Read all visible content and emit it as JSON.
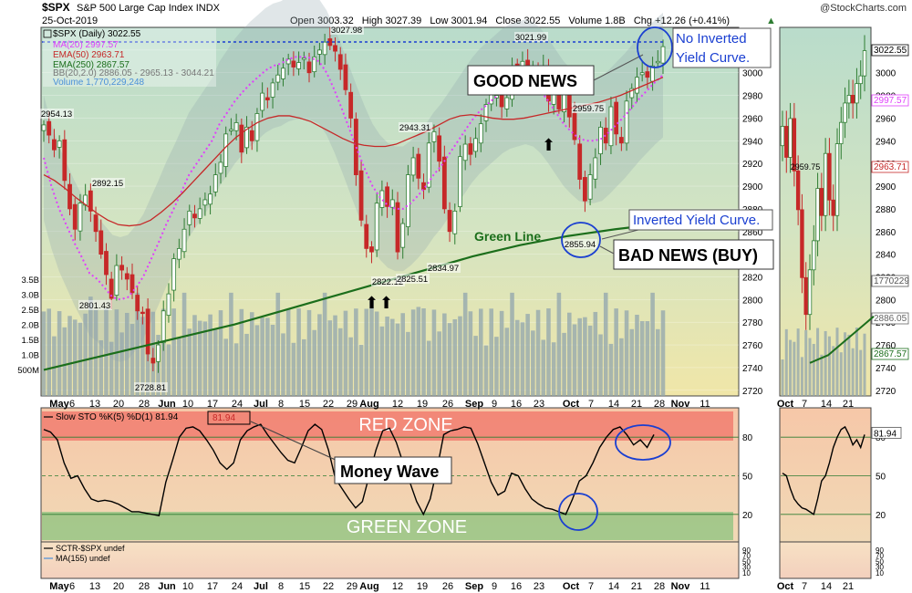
{
  "header": {
    "symbol": "$SPX",
    "name": "S&P 500 Large Cap Index",
    "exchange": "INDX",
    "date": "25-Oct-2019",
    "copyright": "@StockCharts.com",
    "open": "Open 3003.32",
    "high": "High 3027.39",
    "low": "Low 3001.94",
    "close": "Close 3022.55",
    "volume": "Volume 1.8B",
    "change": "Chg +12.26 (+0.41%)"
  },
  "legend": {
    "price": "$SPX (Daily) 3022.55",
    "ma20": "MA(20) 2997.57",
    "ema50": "EMA(50) 2963.71",
    "ema250": "EMA(250) 2867.57",
    "bb": "BB(20,2.0) 2886.05 - 2965.13 - 3044.21",
    "vol": "Volume 1,770,229,248"
  },
  "annotations": {
    "good_news": "GOOD NEWS",
    "bad_news": "BAD NEWS (BUY)",
    "no_inverted": [
      "No Inverted",
      "Yield Curve."
    ],
    "inverted": "Inverted Yield Curve.",
    "green_line": "Green Line",
    "money_wave": "Money Wave",
    "red_zone": "RED ZONE",
    "green_zone": "GREEN ZONE"
  },
  "indicator": {
    "sto_label": "Slow STO %K(5) %D(1) 81.94",
    "sto_value": "81.94",
    "sctr_label": "SCTR-$SPX undef",
    "sctr_ma": "MA(155) undef"
  },
  "colors": {
    "up": "#2e7d32",
    "down": "#c62828",
    "ma20": "#e040fb",
    "ema50": "#c62828",
    "ema250": "#1b6e1b",
    "volume": "#90a4ae",
    "red_zone": "#ef5350",
    "green_zone": "#66bb6a",
    "annotation_blue": "#1a3fd1"
  },
  "chart_data": [
    {
      "type": "candlestick",
      "title": "$SPX S&P 500 Large Cap Index INDX",
      "ylim": [
        2715,
        3040
      ],
      "y_ticks": [
        2720,
        2740,
        2760,
        2780,
        2800,
        2820,
        2840,
        2860,
        2880,
        2900,
        2920,
        2940,
        2960,
        2980,
        3000,
        3020
      ],
      "x_ticks": [
        "May",
        "6",
        "13",
        "20",
        "28",
        "Jun",
        "10",
        "17",
        "24",
        "Jul",
        "8",
        "15",
        "22",
        "29",
        "Aug",
        "12",
        "19",
        "26",
        "Sep",
        "9",
        "16",
        "23",
        "Oct",
        "7",
        "14",
        "21",
        "28",
        "Nov",
        "11"
      ],
      "price_labels": [
        "2954.13",
        "2892.15",
        "2801.43",
        "2728.81",
        "3027.98",
        "2943.31",
        "2822.12",
        "2825.51",
        "2834.97",
        "3021.99",
        "2959.75",
        "2855.94"
      ],
      "closes": [
        2954,
        2945,
        2932,
        2940,
        2905,
        2880,
        2862,
        2885,
        2892,
        2878,
        2860,
        2840,
        2822,
        2801,
        2830,
        2826,
        2818,
        2806,
        2790,
        2788,
        2752,
        2744,
        2760,
        2790,
        2805,
        2836,
        2845,
        2862,
        2878,
        2872,
        2880,
        2888,
        2893,
        2910,
        2921,
        2946,
        2950,
        2956,
        2930,
        2952,
        2940,
        2964,
        2982,
        2976,
        2991,
        2998,
        3004,
        3012,
        3005,
        3009,
        3013,
        3000,
        3014,
        3020,
        3027,
        3024,
        3019,
        3003,
        2985,
        2960,
        2910,
        2870,
        2845,
        2842,
        2885,
        2896,
        2882,
        2888,
        2842,
        2867,
        2910,
        2925,
        2907,
        2897,
        2938,
        2948,
        2922,
        2880,
        2860,
        2878,
        2926,
        2937,
        2928,
        2942,
        2955,
        2972,
        2981,
        2980,
        2970,
        2978,
        3004,
        3007,
        3010,
        2996,
        3005,
        2998,
        3006,
        2975,
        2984,
        2968,
        2988,
        2961,
        2941,
        2906,
        2887,
        2910,
        2925,
        2952,
        2938,
        2970,
        2946,
        2938,
        2975,
        2986,
        2996,
        3000,
        2996,
        3006,
        3010,
        3023
      ],
      "ma20": [
        2925,
        2900,
        2880,
        2865,
        2850,
        2837,
        2823,
        2818,
        2810,
        2802,
        2800,
        2802,
        2810,
        2820,
        2835,
        2850,
        2866,
        2880,
        2895,
        2910,
        2920,
        2930,
        2940,
        2955,
        2965,
        2975,
        2983,
        2990,
        2996,
        3002,
        3006,
        3008,
        3012,
        3014,
        3014,
        3013,
        3010,
        3000,
        2985,
        2968,
        2950,
        2932,
        2915,
        2900,
        2890,
        2883,
        2880,
        2880,
        2885,
        2892,
        2900,
        2910,
        2918,
        2928,
        2938,
        2948,
        2958,
        2966,
        2972,
        2978,
        2984,
        2988,
        2990,
        2992,
        2990,
        2984,
        2975,
        2965,
        2955,
        2948,
        2942,
        2940,
        2940,
        2942,
        2948,
        2955,
        2962,
        2970,
        2978,
        2985,
        2992,
        2998
      ],
      "ema50": [
        2910,
        2905,
        2898,
        2890,
        2883,
        2876,
        2870,
        2866,
        2865,
        2866,
        2870,
        2877,
        2885,
        2894,
        2904,
        2914,
        2924,
        2934,
        2943,
        2950,
        2956,
        2960,
        2962,
        2962,
        2960,
        2957,
        2952,
        2947,
        2942,
        2938,
        2936,
        2935,
        2935,
        2937,
        2941,
        2945,
        2949,
        2954,
        2959,
        2962,
        2963,
        2962,
        2960,
        2959,
        2959,
        2960,
        2962,
        2964,
        2966,
        2968,
        2970,
        2972,
        2974,
        2977,
        2980,
        2984,
        2988,
        2992,
        2996
      ],
      "ema250": [
        2738,
        2748,
        2758,
        2768,
        2778,
        2790,
        2802,
        2814,
        2826,
        2838,
        2848,
        2856,
        2862,
        2867
      ],
      "volume_ticks": [
        "500M",
        "1.0B",
        "1.5B",
        "2.0B",
        "2.5B",
        "3.0B",
        "3.5B"
      ],
      "volume_last": "1770229",
      "right_axis_tags": [
        "3022.55",
        "2997.57",
        "2963.71",
        "2886.05",
        "2867.57",
        "1770229"
      ]
    },
    {
      "type": "line",
      "title": "Slow STO %K(5) %D(1) 81.94",
      "ylim": [
        0,
        100
      ],
      "y_ticks": [
        20,
        50,
        80
      ],
      "values": [
        86,
        84,
        78,
        60,
        48,
        50,
        40,
        32,
        30,
        31,
        30,
        28,
        25,
        22,
        22,
        21,
        20,
        19,
        45,
        62,
        80,
        87,
        88,
        85,
        78,
        70,
        60,
        55,
        60,
        78,
        85,
        88,
        90,
        82,
        75,
        68,
        62,
        60,
        72,
        85,
        90,
        86,
        70,
        48,
        40,
        32,
        25,
        30,
        50,
        70,
        85,
        87,
        76,
        60,
        45,
        30,
        20,
        32,
        55,
        82,
        85,
        86,
        88,
        87,
        75,
        60,
        45,
        35,
        38,
        52,
        50,
        40,
        32,
        28,
        25,
        24,
        22,
        20,
        32,
        46,
        50,
        60,
        72,
        80,
        86,
        88,
        82,
        74,
        78,
        72,
        82
      ]
    }
  ]
}
